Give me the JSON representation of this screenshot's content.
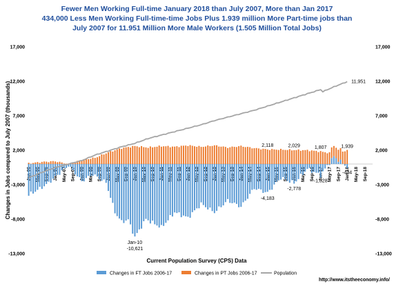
{
  "chart_data": {
    "type": "bar",
    "title_lines": [
      "Fewer Men Working Full-time January 2018 than July 2007, More than Jan 2017",
      "434,000 Less Men Working Full-time-time Jobs Plus  1.939 million  More Part-time jobs than",
      "July 2007 for 11.951 Million More Male Workers   (1.505 Million Total Jobs)"
    ],
    "ylabel": "Changes in Jobs compared to  July 2007 (thousands)",
    "xlabel": "Current Population Survey (CPS) Data",
    "ylim": [
      -13000,
      17000
    ],
    "yticks": [
      "17,000",
      "12,000",
      "7,000",
      "2,000",
      "-3,000",
      "-8,000",
      "-13,000"
    ],
    "ytick_values": [
      17000,
      12000,
      7000,
      2000,
      -3000,
      -8000,
      -13000
    ],
    "y2ticks": [
      "17,000",
      "12,000",
      "7,000",
      "2,000",
      "-3,000",
      "-8,000",
      "-13,000"
    ],
    "x_tick_labels": [
      "Jan-06",
      "May-06",
      "Sep-06",
      "Jan-07",
      "May-07",
      "Sep-07",
      "Jan-08",
      "May-08",
      "Sep-08",
      "Jan-09",
      "May-09",
      "Sep-09",
      "Jan-10",
      "May-10",
      "Sep-10",
      "Jan-11",
      "May-11",
      "Sep-11",
      "Jan-12",
      "May-12",
      "Sep-12",
      "Jan-13",
      "May-13",
      "Sep-13",
      "Jan-14",
      "May-14",
      "Sep-14",
      "Jan-15",
      "May-15",
      "Sep-15",
      "Jan-16",
      "May-16",
      "Sep-16",
      "Jan-17",
      "May-17",
      "Sep-17",
      "Jan-18",
      "May-18",
      "Sep-18"
    ],
    "x_range": [
      "Jan-06",
      "Dec-18"
    ],
    "series": [
      {
        "name": "Changes in FT Jobs 2006-17",
        "color": "#5b9bd5",
        "keypoints": [
          {
            "x": "Jan-06",
            "y": -4500
          },
          {
            "x": "Sep-06",
            "y": -3000
          },
          {
            "x": "Jul-07",
            "y": -200
          },
          {
            "x": "Jan-08",
            "y": -2500
          },
          {
            "x": "Jun-08",
            "y": -1500
          },
          {
            "x": "Dec-08",
            "y": -2700
          },
          {
            "x": "Apr-09",
            "y": -7000
          },
          {
            "x": "Jul-09",
            "y": -8400
          },
          {
            "x": "Oct-09",
            "y": -8100
          },
          {
            "x": "Jan-10",
            "y": -10621
          },
          {
            "x": "Jun-10",
            "y": -8000
          },
          {
            "x": "Oct-10",
            "y": -8700
          },
          {
            "x": "Jan-11",
            "y": -9200
          },
          {
            "x": "Jul-11",
            "y": -7000
          },
          {
            "x": "Jan-12",
            "y": -7800
          },
          {
            "x": "Jul-12",
            "y": -5800
          },
          {
            "x": "Jan-13",
            "y": -7000
          },
          {
            "x": "Jul-13",
            "y": -5300
          },
          {
            "x": "Jan-14",
            "y": -6200
          },
          {
            "x": "Jul-14",
            "y": -3500
          },
          {
            "x": "Jan-15",
            "y": -4183
          },
          {
            "x": "Jul-15",
            "y": -2000
          },
          {
            "x": "Jan-16",
            "y": -2778
          },
          {
            "x": "Jul-16",
            "y": -700
          },
          {
            "x": "Jan-17",
            "y": -1628
          },
          {
            "x": "Jul-17",
            "y": 1100
          },
          {
            "x": "Jan-18",
            "y": -434
          }
        ]
      },
      {
        "name": "Changes in PT Jobs 2006-17",
        "color": "#ed7d31",
        "keypoints": [
          {
            "x": "Jan-06",
            "y": 100
          },
          {
            "x": "Jul-06",
            "y": 300
          },
          {
            "x": "Jan-07",
            "y": 400
          },
          {
            "x": "Jul-07",
            "y": 0
          },
          {
            "x": "Jan-08",
            "y": 600
          },
          {
            "x": "Jul-08",
            "y": 900
          },
          {
            "x": "Jan-09",
            "y": 1700
          },
          {
            "x": "Jul-09",
            "y": 2300
          },
          {
            "x": "Jan-10",
            "y": 2600
          },
          {
            "x": "Jul-10",
            "y": 2400
          },
          {
            "x": "Jan-11",
            "y": 2600
          },
          {
            "x": "Jul-11",
            "y": 2500
          },
          {
            "x": "Jan-12",
            "y": 2700
          },
          {
            "x": "Jul-12",
            "y": 2500
          },
          {
            "x": "Jan-13",
            "y": 2700
          },
          {
            "x": "Jul-13",
            "y": 2400
          },
          {
            "x": "Jan-14",
            "y": 2600
          },
          {
            "x": "Jul-14",
            "y": 2300
          },
          {
            "x": "Jan-15",
            "y": 2118
          },
          {
            "x": "Jul-15",
            "y": 2100
          },
          {
            "x": "Jan-16",
            "y": 2029
          },
          {
            "x": "Jul-16",
            "y": 2000
          },
          {
            "x": "Jan-17",
            "y": 1807
          },
          {
            "x": "Jul-17",
            "y": 1500
          },
          {
            "x": "Jan-18",
            "y": 1939
          }
        ]
      },
      {
        "name": "Population",
        "color": "#a5a5a5",
        "type": "line",
        "keypoints": [
          {
            "x": "Jan-06",
            "y": -2000
          },
          {
            "x": "Jul-06",
            "y": -1200
          },
          {
            "x": "Jan-07",
            "y": -500
          },
          {
            "x": "Jul-07",
            "y": 0
          },
          {
            "x": "Jan-08",
            "y": 500
          },
          {
            "x": "Jul-08",
            "y": 1300
          },
          {
            "x": "Jan-09",
            "y": 1900
          },
          {
            "x": "Jul-09",
            "y": 2500
          },
          {
            "x": "Jan-10",
            "y": 3000
          },
          {
            "x": "Jul-10",
            "y": 3700
          },
          {
            "x": "Jan-11",
            "y": 4200
          },
          {
            "x": "Jul-11",
            "y": 4700
          },
          {
            "x": "Jan-12",
            "y": 5200
          },
          {
            "x": "Jul-12",
            "y": 5700
          },
          {
            "x": "Jan-13",
            "y": 6300
          },
          {
            "x": "Jul-13",
            "y": 6800
          },
          {
            "x": "Jan-14",
            "y": 7300
          },
          {
            "x": "Jul-14",
            "y": 7800
          },
          {
            "x": "Jan-15",
            "y": 8400
          },
          {
            "x": "Jul-15",
            "y": 9000
          },
          {
            "x": "Jan-16",
            "y": 9600
          },
          {
            "x": "Jul-16",
            "y": 10200
          },
          {
            "x": "Jan-17",
            "y": 10800
          },
          {
            "x": "Feb-17",
            "y": 10500
          },
          {
            "x": "Jul-17",
            "y": 11200
          },
          {
            "x": "Jan-18",
            "y": 11951
          }
        ]
      }
    ],
    "annotations": [
      {
        "text": "11,951",
        "x": "Jan-18",
        "y": 11951,
        "placement": "right"
      },
      {
        "text": "2,118",
        "x": "Jan-15",
        "y": 2118,
        "placement": "above"
      },
      {
        "text": "2,029",
        "x": "Jan-16",
        "y": 2029,
        "placement": "above"
      },
      {
        "text": "1,807",
        "x": "Jan-17",
        "y": 1807,
        "placement": "above"
      },
      {
        "text": "1,939",
        "x": "Jan-18",
        "y": 1939,
        "placement": "above"
      },
      {
        "text": "-4,183",
        "x": "Jan-15",
        "y": -4183,
        "placement": "below"
      },
      {
        "text": "-2,778",
        "x": "Jan-16",
        "y": -2778,
        "placement": "below"
      },
      {
        "text": "-1,628",
        "x": "Jan-17",
        "y": -1628,
        "placement": "below"
      },
      {
        "text": "-434",
        "x": "Jan-18",
        "y": -434,
        "placement": "below"
      },
      {
        "text": "Jan-10",
        "x": "Jan-10",
        "y": -10621,
        "placement": "below"
      },
      {
        "text": "-10,621",
        "x": "Jan-10",
        "y": -10621,
        "placement": "below2"
      }
    ],
    "legend": [
      "Changes in FT Jobs 2006-17",
      "Changes in PT Jobs 2006-17",
      "Population"
    ],
    "legend_position": "bottom",
    "grid": false
  },
  "source": "http://www.itstheeconomy.info/"
}
